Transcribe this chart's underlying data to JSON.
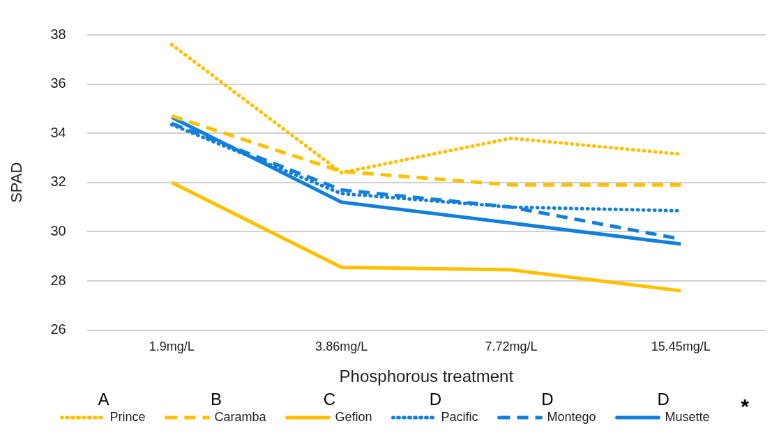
{
  "chart_data": {
    "type": "line",
    "xlabel": "Phosphorous treatment",
    "ylabel": "SPAD",
    "categories": [
      "1.9mg/L",
      "3.86mg/L",
      "7.72mg/L",
      "15.45mg/L"
    ],
    "series": [
      {
        "name": "Prince",
        "color": "#ffc000",
        "line_style": "dotted",
        "values": [
          37.6,
          32.4,
          33.8,
          33.15
        ]
      },
      {
        "name": "Caramba",
        "color": "#ffc000",
        "line_style": "dashed",
        "values": [
          34.7,
          32.45,
          31.9,
          31.9
        ]
      },
      {
        "name": "Gefion",
        "color": "#ffc000",
        "line_style": "solid",
        "values": [
          32.0,
          28.55,
          28.45,
          27.6
        ]
      },
      {
        "name": "Pacific",
        "color": "#137fdc",
        "line_style": "dotted",
        "values": [
          34.35,
          31.55,
          31.0,
          30.85
        ]
      },
      {
        "name": "Montego",
        "color": "#137fdc",
        "line_style": "dashed",
        "values": [
          34.4,
          31.7,
          31.0,
          29.7
        ]
      },
      {
        "name": "Musette",
        "color": "#137fdc",
        "line_style": "solid",
        "values": [
          34.65,
          31.2,
          30.35,
          29.5
        ]
      }
    ],
    "ylim": [
      26,
      38
    ],
    "yticks": [
      26,
      28,
      30,
      32,
      34,
      36,
      38
    ],
    "grid": "y",
    "legend": "bottom",
    "marker": "none",
    "annotations": [
      "A",
      "B",
      "C",
      "D",
      "D",
      "D",
      "*"
    ]
  }
}
